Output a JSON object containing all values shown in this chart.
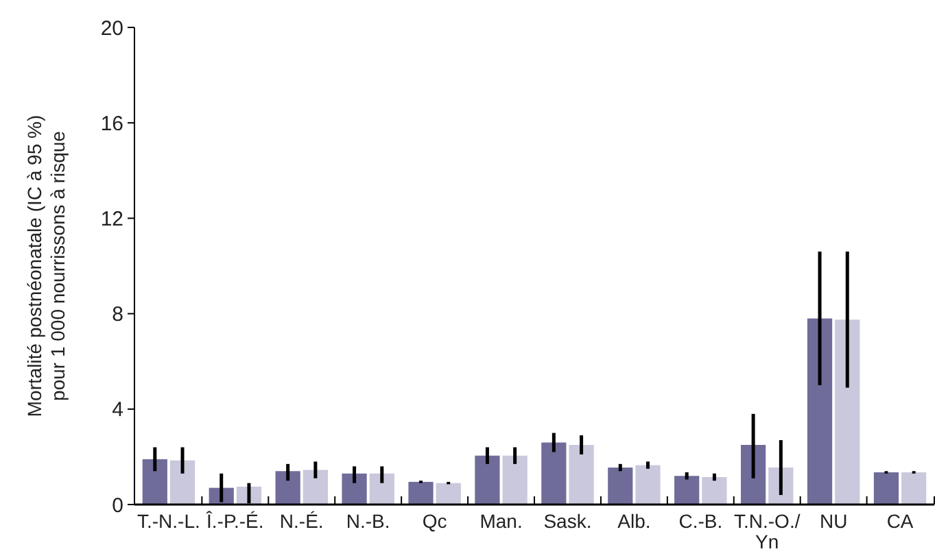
{
  "chart_data": {
    "type": "bar",
    "ylabel": "Mortalité postnéonatale (IC à 95 %)\npour 1 000 nourrissons à risque",
    "categories": [
      "T.-N.-L.",
      "Î.-P.-É.",
      "N.-É.",
      "N.-B.",
      "Qc",
      "Man.",
      "Sask.",
      "Alb.",
      "C.-B.",
      "T.N.-O./Yn",
      "NU",
      "CA"
    ],
    "series": [
      {
        "color": "#6f6c9a",
        "values": [
          1.9,
          0.7,
          1.4,
          1.3,
          0.95,
          2.05,
          2.6,
          1.55,
          1.2,
          2.5,
          7.8,
          1.35
        ],
        "errors": [
          [
            1.4,
            2.4
          ],
          [
            0.1,
            1.3
          ],
          [
            1.0,
            1.7
          ],
          [
            0.9,
            1.6
          ],
          [
            0.9,
            1.0
          ],
          [
            1.7,
            2.4
          ],
          [
            2.2,
            3.0
          ],
          [
            1.4,
            1.7
          ],
          [
            1.05,
            1.35
          ],
          [
            1.1,
            3.8
          ],
          [
            5.0,
            10.6
          ],
          [
            1.3,
            1.4
          ]
        ]
      },
      {
        "color": "#c9c8dc",
        "values": [
          1.85,
          0.75,
          1.45,
          1.3,
          0.9,
          2.05,
          2.5,
          1.65,
          1.15,
          1.55,
          7.75,
          1.35
        ],
        "errors": [
          [
            1.3,
            2.4
          ],
          [
            0.05,
            0.9
          ],
          [
            1.1,
            1.8
          ],
          [
            0.9,
            1.6
          ],
          [
            0.85,
            0.95
          ],
          [
            1.7,
            2.4
          ],
          [
            2.1,
            2.9
          ],
          [
            1.5,
            1.8
          ],
          [
            1.0,
            1.3
          ],
          [
            0.4,
            2.7
          ],
          [
            4.9,
            10.6
          ],
          [
            1.3,
            1.4
          ]
        ]
      }
    ],
    "ylim": [
      0,
      20
    ],
    "yticks": [
      0,
      4,
      8,
      12,
      16,
      20
    ],
    "grid": false
  }
}
